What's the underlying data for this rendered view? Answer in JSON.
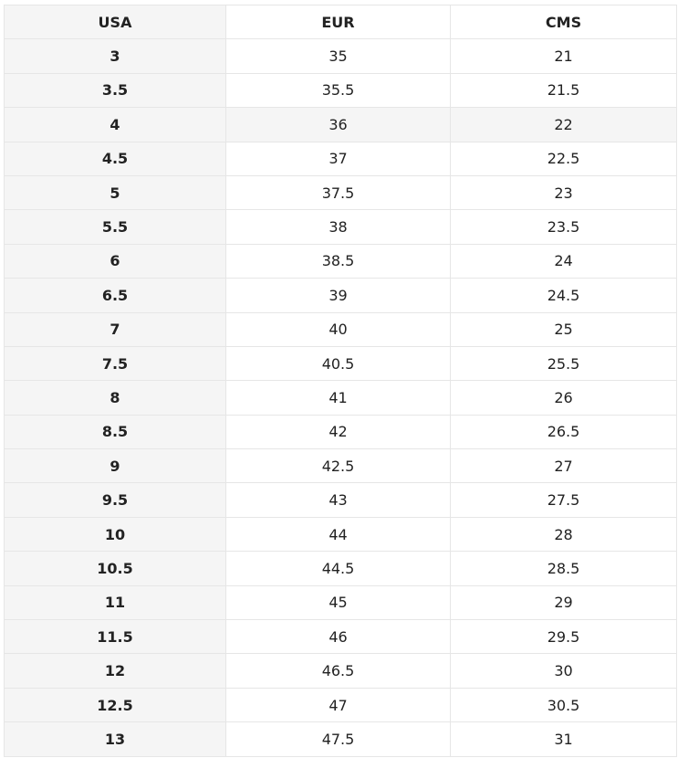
{
  "table": {
    "header": [
      "USA",
      "EUR",
      "CMS"
    ],
    "rows": [
      [
        "3",
        "35",
        "21"
      ],
      [
        "3.5",
        "35.5",
        "21.5"
      ],
      [
        "4",
        "36",
        "22"
      ],
      [
        "4.5",
        "37",
        "22.5"
      ],
      [
        "5",
        "37.5",
        "23"
      ],
      [
        "5.5",
        "38",
        "23.5"
      ],
      [
        "6",
        "38.5",
        "24"
      ],
      [
        "6.5",
        "39",
        "24.5"
      ],
      [
        "7",
        "40",
        "25"
      ],
      [
        "7.5",
        "40.5",
        "25.5"
      ],
      [
        "8",
        "41",
        "26"
      ],
      [
        "8.5",
        "42",
        "26.5"
      ],
      [
        "9",
        "42.5",
        "27"
      ],
      [
        "9.5",
        "43",
        "27.5"
      ],
      [
        "10",
        "44",
        "28"
      ],
      [
        "10.5",
        "44.5",
        "28.5"
      ],
      [
        "11",
        "45",
        "29"
      ],
      [
        "11.5",
        "46",
        "29.5"
      ],
      [
        "12",
        "46.5",
        "30"
      ],
      [
        "12.5",
        "47",
        "30.5"
      ],
      [
        "13",
        "47.5",
        "31"
      ]
    ]
  }
}
